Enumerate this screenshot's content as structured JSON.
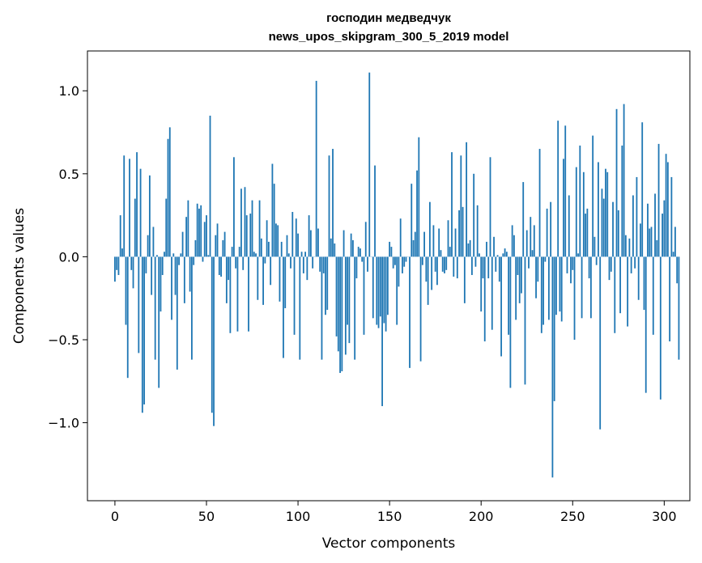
{
  "chart_data": {
    "type": "bar",
    "title_line1": "господин медведчук",
    "title_line2": "news_upos_skipgram_300_5_2019 model",
    "xlabel": "Vector components",
    "ylabel": "Components values",
    "xlim": [
      -15,
      314
    ],
    "ylim": [
      -1.47,
      1.24
    ],
    "xticks": [
      0,
      50,
      100,
      150,
      200,
      250,
      300
    ],
    "yticks": [
      1.0,
      0.5,
      0.0,
      -0.5,
      -1.0
    ],
    "xtick_labels": [
      "0",
      "50",
      "100",
      "150",
      "200",
      "250",
      "300"
    ],
    "ytick_labels": [
      "1.0",
      "0.5",
      "0.0",
      "−0.5",
      "−1.0"
    ],
    "grid": false,
    "bar_color": "#1f77b4",
    "values": [
      -0.15,
      -0.08,
      -0.11,
      0.25,
      0.05,
      0.61,
      -0.41,
      -0.73,
      0.59,
      -0.08,
      -0.19,
      0.35,
      0.63,
      -0.58,
      0.53,
      -0.94,
      -0.89,
      -0.1,
      0.13,
      0.49,
      -0.23,
      0.18,
      -0.62,
      0.01,
      -0.79,
      -0.33,
      -0.11,
      0.03,
      0.35,
      0.71,
      0.78,
      -0.38,
      0.02,
      -0.23,
      -0.68,
      -0.05,
      0.02,
      0.15,
      -0.28,
      0.24,
      0.34,
      -0.21,
      -0.62,
      -0.05,
      0.1,
      0.32,
      0.29,
      0.31,
      -0.03,
      0.21,
      0.25,
      0.01,
      0.85,
      -0.94,
      -1.02,
      0.13,
      0.2,
      -0.11,
      -0.12,
      0.1,
      0.15,
      -0.28,
      -0.14,
      -0.46,
      0.06,
      0.6,
      -0.07,
      -0.45,
      0.06,
      0.41,
      -0.08,
      0.42,
      0.25,
      -0.45,
      0.26,
      0.34,
      0.03,
      0.02,
      -0.26,
      0.34,
      0.11,
      -0.29,
      -0.04,
      0.22,
      0.09,
      -0.17,
      0.56,
      0.44,
      0.2,
      0.19,
      -0.27,
      0.09,
      -0.61,
      -0.31,
      0.13,
      0.02,
      -0.07,
      0.27,
      -0.47,
      0.23,
      0.14,
      -0.62,
      0.03,
      -0.1,
      0.03,
      -0.14,
      0.25,
      0.16,
      -0.07,
      0.0,
      1.06,
      0.17,
      -0.09,
      -0.62,
      -0.1,
      -0.35,
      -0.32,
      0.61,
      0.11,
      0.65,
      0.08,
      -0.48,
      -0.57,
      -0.7,
      -0.69,
      0.16,
      -0.59,
      -0.41,
      -0.52,
      0.14,
      0.1,
      -0.62,
      -0.13,
      0.06,
      0.05,
      -0.03,
      -0.47,
      0.21,
      -0.09,
      1.11,
      0.0,
      -0.37,
      0.55,
      -0.41,
      -0.43,
      -0.36,
      -0.9,
      -0.4,
      -0.45,
      -0.35,
      0.09,
      0.06,
      -0.07,
      -0.05,
      -0.41,
      -0.18,
      0.23,
      -0.1,
      -0.06,
      -0.03,
      0.0,
      -0.67,
      0.44,
      0.1,
      0.15,
      0.52,
      0.72,
      -0.63,
      -0.05,
      0.15,
      -0.15,
      -0.29,
      0.33,
      -0.2,
      0.19,
      -0.09,
      -0.17,
      0.17,
      0.04,
      -0.09,
      -0.1,
      -0.08,
      0.22,
      0.06,
      0.63,
      -0.12,
      0.17,
      -0.13,
      0.28,
      0.61,
      0.3,
      -0.28,
      0.69,
      0.08,
      0.1,
      -0.11,
      0.5,
      -0.06,
      0.31,
      0.02,
      -0.33,
      -0.13,
      -0.51,
      0.09,
      -0.13,
      0.6,
      -0.44,
      0.12,
      -0.09,
      0.01,
      -0.15,
      -0.6,
      0.02,
      0.05,
      0.03,
      -0.47,
      -0.79,
      0.19,
      0.13,
      -0.38,
      -0.11,
      -0.28,
      -0.22,
      0.45,
      -0.77,
      0.16,
      -0.07,
      0.24,
      0.04,
      0.19,
      -0.25,
      -0.15,
      0.65,
      -0.46,
      -0.41,
      -0.03,
      0.29,
      -0.38,
      0.33,
      -1.33,
      -0.87,
      -0.35,
      0.82,
      -0.33,
      -0.39,
      0.59,
      0.79,
      -0.1,
      0.37,
      -0.16,
      -0.08,
      -0.5,
      0.54,
      0.02,
      0.67,
      -0.37,
      0.51,
      0.26,
      0.29,
      -0.13,
      -0.37,
      0.73,
      0.12,
      -0.05,
      0.57,
      -1.04,
      0.41,
      0.35,
      0.53,
      0.51,
      -0.14,
      -0.09,
      0.33,
      -0.46,
      0.89,
      0.28,
      -0.34,
      0.67,
      0.92,
      0.13,
      -0.42,
      0.11,
      -0.1,
      0.37,
      -0.07,
      0.48,
      -0.26,
      0.2,
      0.81,
      -0.32,
      -0.82,
      0.32,
      0.17,
      0.18,
      -0.47,
      0.38,
      0.1,
      0.68,
      -0.86,
      0.26,
      0.34,
      0.62,
      0.57,
      -0.51,
      0.48,
      0.03,
      0.18,
      -0.16,
      -0.62
    ]
  }
}
